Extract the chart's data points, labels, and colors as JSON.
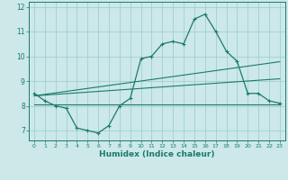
{
  "xlabel": "Humidex (Indice chaleur)",
  "x": [
    0,
    1,
    2,
    3,
    4,
    5,
    6,
    7,
    8,
    9,
    10,
    11,
    12,
    13,
    14,
    15,
    16,
    17,
    18,
    19,
    20,
    21,
    22,
    23
  ],
  "y_main": [
    8.5,
    8.2,
    8.0,
    7.9,
    7.1,
    7.0,
    6.9,
    7.2,
    8.0,
    8.3,
    9.9,
    10.0,
    10.5,
    10.6,
    10.5,
    11.5,
    11.7,
    11.0,
    10.2,
    9.8,
    8.5,
    8.5,
    8.2,
    8.1
  ],
  "y_flat": [
    8.05,
    8.05,
    8.05,
    8.05,
    8.05,
    8.05,
    8.05,
    8.05,
    8.05,
    8.05,
    8.05,
    8.05,
    8.05,
    8.05,
    8.05,
    8.05,
    8.05,
    8.05,
    8.05,
    8.05,
    8.05,
    8.05,
    8.05,
    8.05
  ],
  "y_slope1": [
    8.4,
    8.43,
    8.46,
    8.49,
    8.52,
    8.55,
    8.58,
    8.61,
    8.64,
    8.67,
    8.7,
    8.73,
    8.76,
    8.79,
    8.82,
    8.85,
    8.88,
    8.91,
    8.94,
    8.97,
    9.0,
    9.03,
    9.06,
    9.09
  ],
  "y_slope2": [
    8.4,
    8.46,
    8.52,
    8.58,
    8.64,
    8.7,
    8.76,
    8.82,
    8.88,
    8.94,
    9.0,
    9.06,
    9.12,
    9.18,
    9.24,
    9.3,
    9.36,
    9.42,
    9.48,
    9.54,
    9.6,
    9.66,
    9.72,
    9.78
  ],
  "line_color": "#1a7a6e",
  "bg_color": "#cce8e8",
  "grid_color": "#99cccc",
  "ylim": [
    6.6,
    12.2
  ],
  "xlim": [
    -0.5,
    23.5
  ],
  "yticks": [
    7,
    8,
    9,
    10,
    11,
    12
  ],
  "xticks": [
    0,
    1,
    2,
    3,
    4,
    5,
    6,
    7,
    8,
    9,
    10,
    11,
    12,
    13,
    14,
    15,
    16,
    17,
    18,
    19,
    20,
    21,
    22,
    23
  ]
}
